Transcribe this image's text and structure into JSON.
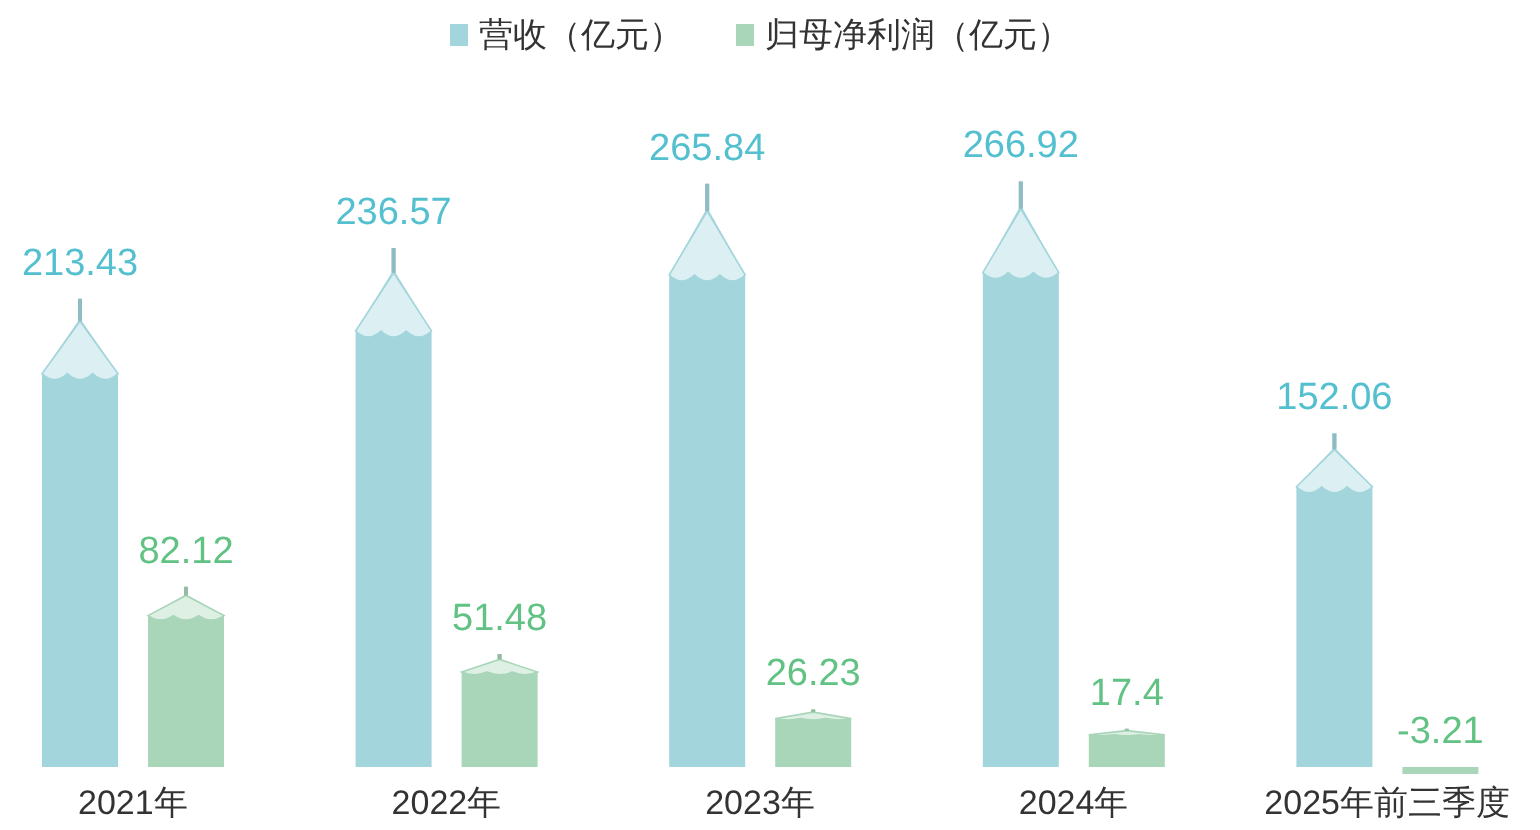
{
  "chart_data": {
    "type": "bar",
    "categories": [
      "2021年",
      "2022年",
      "2023年",
      "2024年",
      "2025年前三季度"
    ],
    "series": [
      {
        "name": "营收（亿元）",
        "color": "#a3d5dc",
        "values": [
          213.43,
          236.57,
          265.84,
          266.92,
          152.06
        ]
      },
      {
        "name": "归母净利润（亿元）",
        "color": "#a9d6b9",
        "values": [
          82.12,
          51.48,
          26.23,
          17.4,
          -3.21
        ]
      }
    ],
    "data_labels": true,
    "legend": "top",
    "tick_labels": "x"
  }
}
